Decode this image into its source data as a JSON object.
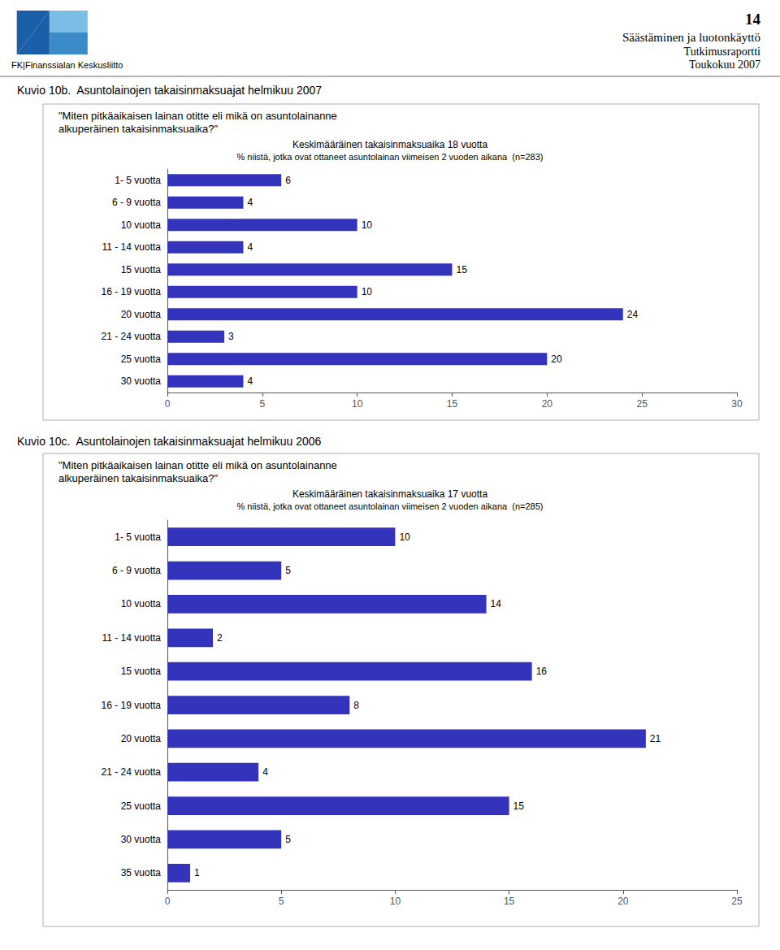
{
  "page": {
    "page_number": "14",
    "header": [
      "Säästäminen ja luotonkäyttö",
      "Tutkimusraportti",
      "Toukokuu 2007"
    ],
    "logo_text": "FK|Finanssialan Keskusliitto"
  },
  "chart_data": [
    {
      "type": "bar",
      "orientation": "horizontal",
      "title": "Kuvio 10b.  Asuntolainojen takaisinmaksuajat helmikuu 2007",
      "annotations": [
        "\"Miten pitkäaikaisen lainan otitte eli mikä on asuntolainanne",
        "alkuperäinen takaisinmaksuaika?\""
      ],
      "subtitle": [
        "Keskimääräinen takaisinmaksuaika 18 vuotta",
        "% niistä, jotka ovat ottaneet asuntolainan viimeisen 2 vuoden aikana  (n=283)"
      ],
      "categories": [
        "1- 5 vuotta",
        "6 - 9 vuotta",
        "10 vuotta",
        "11 - 14 vuotta",
        "15 vuotta",
        "16 - 19 vuotta",
        "20 vuotta",
        "21 - 24 vuotta",
        "25 vuotta",
        "30 vuotta"
      ],
      "values": [
        6,
        4,
        10,
        4,
        15,
        10,
        24,
        3,
        20,
        4
      ],
      "color": "#3333bb",
      "xlim": [
        0,
        30
      ],
      "xticks": [
        0,
        5,
        10,
        15,
        20,
        25,
        30
      ],
      "grid": false,
      "data_labels": true
    },
    {
      "type": "bar",
      "orientation": "horizontal",
      "title": "Kuvio 10c.  Asuntolainojen takaisinmaksuajat helmikuu 2006",
      "annotations": [
        "\"Miten pitkäaikaisen lainan otitte eli mikä on asuntolainanne",
        "alkuperäinen takaisinmaksuaika?\""
      ],
      "subtitle": [
        "Keskimääräinen takaisinmaksuaika 17 vuotta",
        "% niistä, jotka ovat ottaneet asuntolainan viimeisen 2 vuoden aikana  (n=285)"
      ],
      "categories": [
        "1- 5 vuotta",
        "6 - 9 vuotta",
        "10 vuotta",
        "11 - 14 vuotta",
        "15 vuotta",
        "16 - 19 vuotta",
        "20 vuotta",
        "21 - 24 vuotta",
        "25 vuotta",
        "30 vuotta",
        "35 vuotta"
      ],
      "values": [
        10,
        5,
        14,
        2,
        16,
        8,
        21,
        4,
        15,
        5,
        1
      ],
      "color": "#3333bb",
      "xlim": [
        0,
        25
      ],
      "xticks": [
        0,
        5,
        10,
        15,
        20,
        25
      ],
      "grid": false,
      "data_labels": true
    }
  ]
}
